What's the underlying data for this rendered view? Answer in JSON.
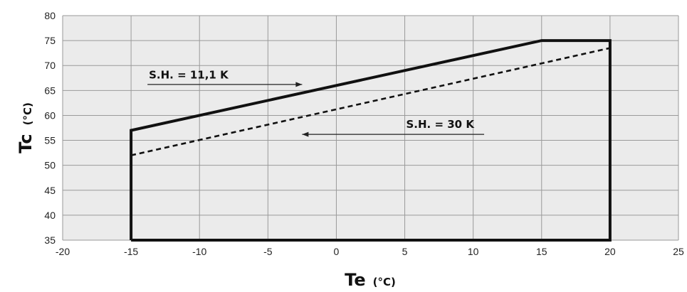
{
  "chart_data": {
    "type": "line",
    "xlabel": "Te",
    "xlabel_unit": "(°C)",
    "ylabel": "Tc",
    "ylabel_unit": "(°C)",
    "xlim": [
      -20,
      25
    ],
    "ylim": [
      35,
      80
    ],
    "xticks": [
      -20,
      -15,
      -10,
      -5,
      0,
      5,
      10,
      15,
      20,
      25
    ],
    "yticks": [
      35,
      40,
      45,
      50,
      55,
      60,
      65,
      70,
      75,
      80
    ],
    "grid": true,
    "colors": {
      "plot_bg": "#ebebeb",
      "grid": "#9a9a9a",
      "line": "#111111"
    },
    "series": [
      {
        "name": "S.H. = 11,1 K",
        "style": "solid",
        "points": [
          [
            -15,
            35
          ],
          [
            -15,
            57
          ],
          [
            15,
            75
          ],
          [
            20,
            75
          ],
          [
            20,
            35
          ],
          [
            -15,
            35
          ]
        ]
      },
      {
        "name": "S.H. = 30 K",
        "style": "dashed",
        "points": [
          [
            -15,
            52
          ],
          [
            20,
            73.5
          ]
        ]
      }
    ],
    "annotations": [
      {
        "text": "S.H. = 11,1 K",
        "series": 0,
        "arrow": "right",
        "text_at": [
          -13.7,
          67.4
        ],
        "arrow_from": [
          -13.8,
          66.2
        ],
        "arrow_to": [
          -2.5,
          66.2
        ]
      },
      {
        "text": "S.H. = 30 K",
        "series": 1,
        "arrow": "left",
        "text_at": [
          5.1,
          57.5
        ],
        "arrow_from": [
          10.8,
          56.2
        ],
        "arrow_to": [
          -2.5,
          56.2
        ]
      }
    ]
  }
}
